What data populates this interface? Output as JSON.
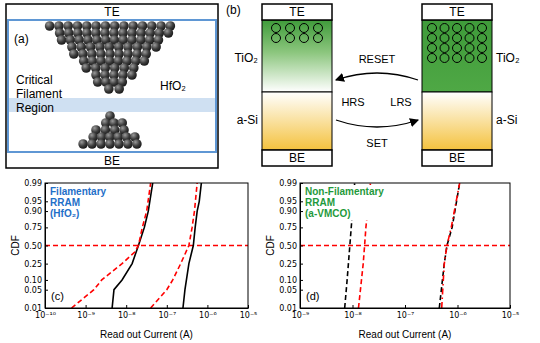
{
  "diagram_a": {
    "panel_label": "(a)",
    "top": "TE",
    "bottom": "BE",
    "material": "HfO₂",
    "region_label": "Critical Filament Region"
  },
  "diagram_b": {
    "panel_label": "(b)",
    "top": "TE",
    "bottom": "BE",
    "layers": [
      "TiO₂",
      "a-Si"
    ],
    "states": [
      "HRS",
      "LRS"
    ],
    "transitions": [
      "RESET",
      "SET"
    ]
  },
  "chart_data": [
    {
      "type": "line",
      "panel_label": "(c)",
      "title": "Filamentary RRAM (HfO₂)",
      "x_label": "Read out Current (A)",
      "y_label": "CDF",
      "log": "x",
      "grid": false,
      "xlim": [
        1e-10,
        1e-05
      ],
      "xticks": [
        {
          "value": 1e-10,
          "label": "10⁻¹⁰"
        },
        {
          "value": 1e-09,
          "label": "10⁻⁹"
        },
        {
          "value": 1e-08,
          "label": "10⁻⁸"
        },
        {
          "value": 1e-07,
          "label": "10⁻⁷"
        },
        {
          "value": 1e-06,
          "label": "10⁻⁶"
        },
        {
          "value": 1e-05,
          "label": "10⁻⁵"
        }
      ],
      "ylim": [
        0.01,
        0.99
      ],
      "yticks": [
        0.01,
        0.05,
        {
          "value": 0.1,
          "label": "0.10"
        },
        0.25,
        {
          "value": 0.5,
          "label": "0.50"
        },
        0.75,
        {
          "value": 0.9,
          "label": "0.90"
        },
        0.95,
        0.99
      ],
      "series": [
        {
          "color": "#ff0000",
          "line_style": "dashed",
          "x": [
            1e-10,
            1e-05
          ],
          "values": [
            0.5,
            0.5
          ]
        },
        {
          "color": "#000000",
          "line_style": "solid",
          "x": [
            4.5e-09,
            5e-09,
            7.9e-09,
            1.4e-08,
            2e-08,
            2.8e-08,
            3.5e-08,
            4.5e-08
          ],
          "values": [
            0.01,
            0.05,
            0.1,
            0.25,
            0.5,
            0.75,
            0.9,
            0.99
          ]
        },
        {
          "color": "#ff0000",
          "line_style": "dashed",
          "x": [
            4.5e-10,
            1.6e-09,
            2.5e-09,
            7.9e-09,
            1.6e-08,
            2e-08,
            2.5e-08,
            3.2e-08,
            4e-08
          ],
          "values": [
            0.01,
            0.05,
            0.1,
            0.25,
            0.4,
            0.5,
            0.75,
            0.9,
            0.99
          ]
        },
        {
          "color": "#000000",
          "line_style": "solid",
          "x": [
            2.5e-07,
            2.8e-07,
            3.5e-07,
            4.5e-07,
            5e-07,
            5.6e-07,
            6.3e-07,
            7.1e-07
          ],
          "values": [
            0.01,
            0.05,
            0.25,
            0.5,
            0.75,
            0.9,
            0.95,
            0.99
          ]
        },
        {
          "color": "#ff0000",
          "line_style": "dashed",
          "x": [
            4e-08,
            1e-07,
            1.4e-07,
            2.2e-07,
            3.5e-07,
            4.2e-07,
            4.8e-07,
            5.6e-07
          ],
          "values": [
            0.01,
            0.05,
            0.1,
            0.25,
            0.5,
            0.75,
            0.9,
            0.99
          ]
        }
      ]
    },
    {
      "type": "line",
      "panel_label": "(d)",
      "title": "Non-Filamentary RRAM (a-VMCO)",
      "x_label": "Read out Current (A)",
      "y_label": "CDF",
      "log": "x",
      "grid": false,
      "xlim": [
        1e-09,
        1e-05
      ],
      "xticks": [
        {
          "value": 1e-09,
          "label": "10⁻⁹"
        },
        {
          "value": 1e-08,
          "label": "10⁻⁸"
        },
        {
          "value": 1e-07,
          "label": "10⁻⁷"
        },
        {
          "value": 1e-06,
          "label": "10⁻⁶"
        },
        {
          "value": 1e-05,
          "label": "10⁻⁵"
        }
      ],
      "ylim": [
        0.01,
        0.99
      ],
      "yticks": [
        0.01,
        0.05,
        {
          "value": 0.1,
          "label": "0.10"
        },
        0.25,
        {
          "value": 0.5,
          "label": "0.50"
        },
        0.75,
        {
          "value": 0.9,
          "label": "0.90"
        },
        0.95,
        0.99
      ],
      "series": [
        {
          "color": "#ff0000",
          "line_style": "dashed",
          "x": [
            1e-09,
            1e-05
          ],
          "values": [
            0.5,
            0.5
          ]
        },
        {
          "color": "#000000",
          "line_style": "dashed",
          "x": [
            7.1e-09,
            7.9e-09,
            8.9e-09,
            1e-08,
            1.1e-08
          ],
          "values": [
            0.01,
            0.1,
            0.5,
            0.9,
            0.99
          ]
        },
        {
          "color": "#ff0000",
          "line_style": "dashed",
          "x": [
            1.3e-08,
            1.6e-08,
            1.7e-08,
            1.8e-08,
            2.2e-08
          ],
          "values": [
            0.01,
            0.25,
            0.5,
            0.75,
            0.99
          ]
        },
        {
          "color": "#000000",
          "line_style": "dashed",
          "x": [
            4.5e-07,
            5.6e-07,
            6.3e-07,
            7.9e-07,
            1.1e-06
          ],
          "values": [
            0.01,
            0.25,
            0.5,
            0.75,
            0.99
          ]
        },
        {
          "color": "#ff0000",
          "line_style": "dashdot",
          "x": [
            5e-07,
            5.6e-07,
            6.3e-07,
            7.6e-07,
            1.1e-06
          ],
          "values": [
            0.01,
            0.25,
            0.5,
            0.75,
            0.99
          ]
        }
      ]
    }
  ]
}
